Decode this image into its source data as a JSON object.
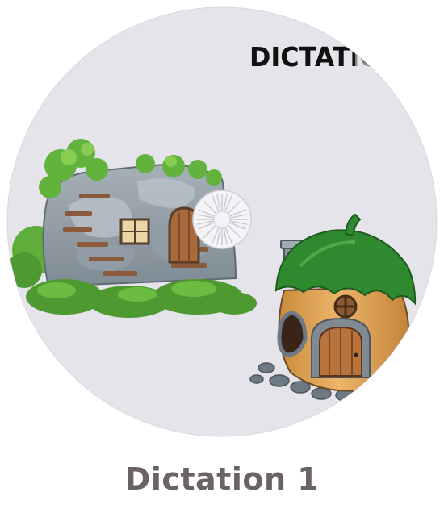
{
  "disc": {
    "label": "DICTATION",
    "face_color": "#e5e4ea",
    "hub_color": "#f4f4f6"
  },
  "caption": {
    "title": "Dictation 1",
    "color": "#6b6363"
  },
  "illustrations": {
    "left": "stone-cave-house",
    "right": "acorn-cottage"
  }
}
